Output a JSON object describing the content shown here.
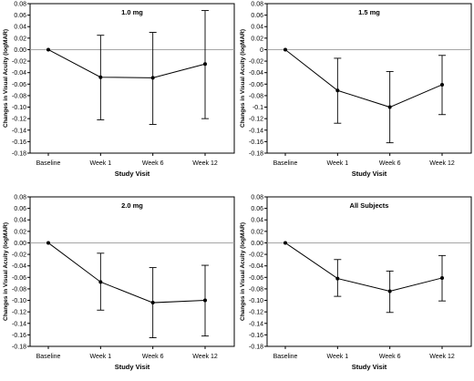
{
  "chart_data": [
    {
      "type": "line",
      "title": "1.0 mg",
      "xlabel": "Study Visit",
      "ylabel": "Changes in Visual Acuity (logMAR)",
      "categories": [
        "Baseline",
        "Week 1",
        "Week 6",
        "Week 12"
      ],
      "values": [
        0.0,
        -0.048,
        -0.049,
        -0.025
      ],
      "error_upper": [
        null,
        0.025,
        0.03,
        0.068
      ],
      "error_lower": [
        null,
        -0.122,
        -0.13,
        -0.12
      ],
      "ylim": [
        -0.18,
        0.08
      ],
      "yticks": [
        0.08,
        0.06,
        0.04,
        0.02,
        0.0,
        -0.02,
        -0.04,
        -0.06,
        -0.08,
        -0.1,
        -0.12,
        -0.14,
        -0.16,
        -0.18
      ],
      "ytick_labels": [
        "0.08",
        "0.06",
        "0.04",
        "0.02",
        "0.00",
        "-0.02",
        "-0.04",
        "-0.06",
        "-0.08",
        "-0.10",
        "-0.12",
        "-0.14",
        "-0.16",
        "-0.18"
      ],
      "zero_line": true,
      "grid": false
    },
    {
      "type": "line",
      "title": "1.5 mg",
      "xlabel": "Study Visit",
      "ylabel": "Changes in Visual Acuity (logMAR)",
      "categories": [
        "Baseline",
        "Week 1",
        "Week 6",
        "Week 12"
      ],
      "values": [
        0.0,
        -0.071,
        -0.1,
        -0.061
      ],
      "error_upper": [
        null,
        -0.015,
        -0.038,
        -0.01
      ],
      "error_lower": [
        null,
        -0.128,
        -0.162,
        -0.113
      ],
      "ylim": [
        -0.18,
        0.08
      ],
      "yticks": [
        0.08,
        0.06,
        0.04,
        0.02,
        0.0,
        -0.02,
        -0.04,
        -0.06,
        -0.08,
        -0.1,
        -0.12,
        -0.14,
        -0.16,
        -0.18
      ],
      "ytick_labels": [
        "0.08",
        "0.06",
        "0.04",
        "0.02",
        "0",
        "-0.02",
        "-0.04",
        "-0.06",
        "-0.08",
        "-0.1",
        "-0.12",
        "-0.14",
        "-0.16",
        "-0.18"
      ],
      "zero_line": true,
      "grid": false
    },
    {
      "type": "line",
      "title": "2.0 mg",
      "xlabel": "Study Visit",
      "ylabel": "Changes in Visual Acuity (logMAR)",
      "categories": [
        "Baseline",
        "Week 1",
        "Week 6",
        "Week 12"
      ],
      "values": [
        0.0,
        -0.068,
        -0.104,
        -0.1
      ],
      "error_upper": [
        null,
        -0.018,
        -0.043,
        -0.039
      ],
      "error_lower": [
        null,
        -0.117,
        -0.165,
        -0.162
      ],
      "ylim": [
        -0.18,
        0.08
      ],
      "yticks": [
        0.08,
        0.06,
        0.04,
        0.02,
        0.0,
        -0.02,
        -0.04,
        -0.06,
        -0.08,
        -0.1,
        -0.12,
        -0.14,
        -0.16,
        -0.18
      ],
      "ytick_labels": [
        "0.08",
        "0.06",
        "0.04",
        "0.02",
        "0.00",
        "-0.02",
        "-0.04",
        "-0.06",
        "-0.08",
        "-0.10",
        "-0.12",
        "-0.14",
        "-0.16",
        "-0.18"
      ],
      "zero_line": true,
      "grid": false
    },
    {
      "type": "line",
      "title": "All Subjects",
      "xlabel": "Study Visit",
      "ylabel": "Changes in Visual Acuity (logMAR)",
      "categories": [
        "Baseline",
        "Week 1",
        "Week 6",
        "Week 12"
      ],
      "values": [
        0.0,
        -0.062,
        -0.084,
        -0.061
      ],
      "error_upper": [
        null,
        -0.029,
        -0.049,
        -0.022
      ],
      "error_lower": [
        null,
        -0.093,
        -0.121,
        -0.101
      ],
      "ylim": [
        -0.18,
        0.08
      ],
      "yticks": [
        0.08,
        0.06,
        0.04,
        0.02,
        0.0,
        -0.02,
        -0.04,
        -0.06,
        -0.08,
        -0.1,
        -0.12,
        -0.14,
        -0.16,
        -0.18
      ],
      "ytick_labels": [
        "0.08",
        "0.06",
        "0.04",
        "0.02",
        "0.00",
        "-0.02",
        "-0.04",
        "-0.06",
        "-0.08",
        "-0.10",
        "-0.12",
        "-0.14",
        "-0.16",
        "-0.18"
      ],
      "zero_line": true,
      "grid": false
    }
  ],
  "colors": {
    "line": "#000000",
    "zero_line": "#999999",
    "frame": "#000000"
  }
}
